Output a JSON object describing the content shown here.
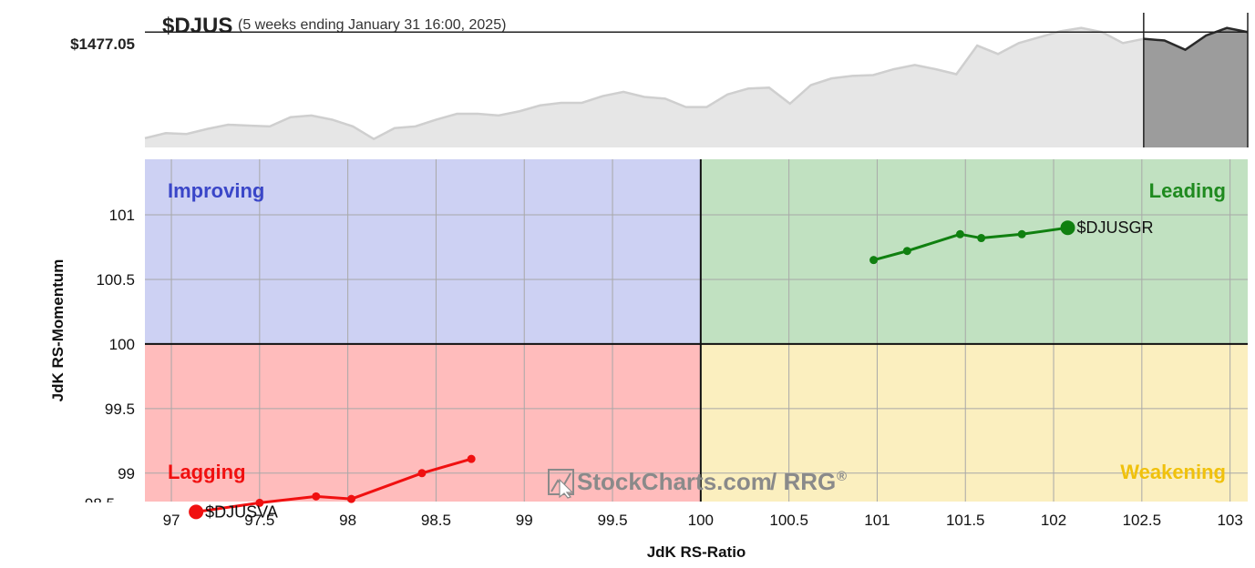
{
  "header": {
    "symbol": "$DJUS",
    "subtitle": "(5 weeks ending January 31 16:00, 2025)",
    "price_label": "$1477.05"
  },
  "quadrants": {
    "improving": {
      "label": "Improving",
      "fill": "#cdd1f3",
      "text": "#3a46c8"
    },
    "leading": {
      "label": "Leading",
      "fill": "#c1e1c1",
      "text": "#1f8a1f"
    },
    "lagging": {
      "label": "Lagging",
      "fill": "#ffbcbc",
      "text": "#f01010"
    },
    "weakening": {
      "label": "Weakening",
      "fill": "#fbefbf",
      "text": "#f0c10c"
    }
  },
  "watermark": {
    "text": "StockCharts.com",
    "suffix": "/ RRG",
    "reg": "®"
  },
  "chart_data": [
    {
      "type": "area",
      "title": "$DJUS",
      "reference_value": 1477.05,
      "highlight_last_points": 6,
      "values": [
        1351,
        1357,
        1356,
        1362,
        1367,
        1366,
        1365,
        1376,
        1378,
        1373,
        1365,
        1350,
        1363,
        1365,
        1373,
        1380,
        1380,
        1378,
        1383,
        1390,
        1393,
        1393,
        1401,
        1406,
        1400,
        1398,
        1388,
        1388,
        1403,
        1410,
        1411,
        1392,
        1414,
        1422,
        1425,
        1426,
        1433,
        1438,
        1433,
        1427,
        1461,
        1451,
        1464,
        1471,
        1478,
        1482,
        1477,
        1464,
        1469,
        1467,
        1456,
        1473,
        1482,
        1477
      ],
      "ylim": [
        1340,
        1500
      ]
    },
    {
      "type": "scatter",
      "xlabel": "JdK RS-Ratio",
      "ylabel": "JdK RS-Momentum",
      "xlim": [
        96.85,
        103.1
      ],
      "ylim": [
        98.78,
        101.43
      ],
      "x_ticks": [
        "97",
        "97.5",
        "98",
        "98.5",
        "99",
        "99.5",
        "100",
        "100.5",
        "101",
        "101.5",
        "102",
        "102.5",
        "103"
      ],
      "y_ticks": [
        "101",
        "100.5",
        "100",
        "99.5",
        "99"
      ],
      "center": {
        "x": 100,
        "y": 100
      },
      "grid": true,
      "series": [
        {
          "name": "$DJUSGR",
          "color": "#108010",
          "points": [
            [
              100.98,
              100.65
            ],
            [
              101.17,
              100.72
            ],
            [
              101.47,
              100.85
            ],
            [
              101.59,
              100.82
            ],
            [
              101.82,
              100.85
            ],
            [
              102.08,
              100.9
            ]
          ]
        },
        {
          "name": "$DJUSVA",
          "color": "#f01010",
          "points": [
            [
              98.7,
              99.11
            ],
            [
              98.42,
              99.0
            ],
            [
              98.02,
              98.8
            ],
            [
              97.82,
              98.82
            ],
            [
              97.5,
              98.77
            ],
            [
              97.14,
              98.7
            ]
          ]
        }
      ]
    }
  ]
}
